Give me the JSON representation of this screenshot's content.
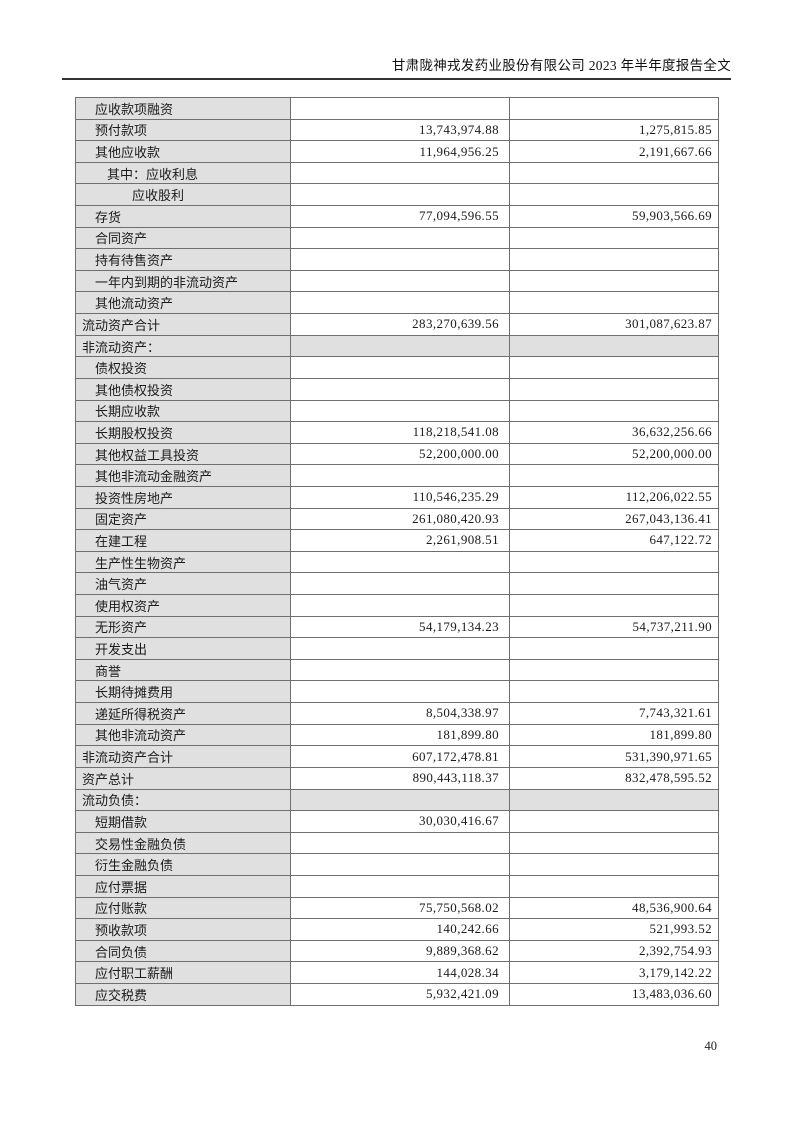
{
  "header": {
    "title": "甘肃陇神戎发药业股份有限公司 2023 年半年度报告全文"
  },
  "footer": {
    "page_number": "40"
  },
  "colors": {
    "label_cell_bg": "#e0e0e0",
    "section_row_bg": "#e0e0e0",
    "table_border": "#6f6f6f",
    "header_rule": "#333333",
    "text": "#1b1b1b"
  },
  "balance_sheet_table": {
    "rows": [
      {
        "label": "应收款项融资",
        "indent": 1,
        "current": "",
        "prior": "",
        "section": false
      },
      {
        "label": "预付款项",
        "indent": 1,
        "current": "13,743,974.88",
        "prior": "1,275,815.85",
        "section": false
      },
      {
        "label": "其他应收款",
        "indent": 1,
        "current": "11,964,956.25",
        "prior": "2,191,667.66",
        "section": false
      },
      {
        "label": "其中：应收利息",
        "indent": 2,
        "current": "",
        "prior": "",
        "section": false
      },
      {
        "label": "应收股利",
        "indent": 3,
        "current": "",
        "prior": "",
        "section": false
      },
      {
        "label": "存货",
        "indent": 1,
        "current": "77,094,596.55",
        "prior": "59,903,566.69",
        "section": false
      },
      {
        "label": "合同资产",
        "indent": 1,
        "current": "",
        "prior": "",
        "section": false
      },
      {
        "label": "持有待售资产",
        "indent": 1,
        "current": "",
        "prior": "",
        "section": false
      },
      {
        "label": "一年内到期的非流动资产",
        "indent": 1,
        "current": "",
        "prior": "",
        "section": false
      },
      {
        "label": "其他流动资产",
        "indent": 1,
        "current": "",
        "prior": "",
        "section": false
      },
      {
        "label": "流动资产合计",
        "indent": 0,
        "current": "283,270,639.56",
        "prior": "301,087,623.87",
        "section": false
      },
      {
        "label": "非流动资产：",
        "indent": 0,
        "current": "",
        "prior": "",
        "section": true
      },
      {
        "label": "债权投资",
        "indent": 1,
        "current": "",
        "prior": "",
        "section": false
      },
      {
        "label": "其他债权投资",
        "indent": 1,
        "current": "",
        "prior": "",
        "section": false
      },
      {
        "label": "长期应收款",
        "indent": 1,
        "current": "",
        "prior": "",
        "section": false
      },
      {
        "label": "长期股权投资",
        "indent": 1,
        "current": "118,218,541.08",
        "prior": "36,632,256.66",
        "section": false
      },
      {
        "label": "其他权益工具投资",
        "indent": 1,
        "current": "52,200,000.00",
        "prior": "52,200,000.00",
        "section": false
      },
      {
        "label": "其他非流动金融资产",
        "indent": 1,
        "current": "",
        "prior": "",
        "section": false
      },
      {
        "label": "投资性房地产",
        "indent": 1,
        "current": "110,546,235.29",
        "prior": "112,206,022.55",
        "section": false
      },
      {
        "label": "固定资产",
        "indent": 1,
        "current": "261,080,420.93",
        "prior": "267,043,136.41",
        "section": false
      },
      {
        "label": "在建工程",
        "indent": 1,
        "current": "2,261,908.51",
        "prior": "647,122.72",
        "section": false
      },
      {
        "label": "生产性生物资产",
        "indent": 1,
        "current": "",
        "prior": "",
        "section": false
      },
      {
        "label": "油气资产",
        "indent": 1,
        "current": "",
        "prior": "",
        "section": false
      },
      {
        "label": "使用权资产",
        "indent": 1,
        "current": "",
        "prior": "",
        "section": false
      },
      {
        "label": "无形资产",
        "indent": 1,
        "current": "54,179,134.23",
        "prior": "54,737,211.90",
        "section": false
      },
      {
        "label": "开发支出",
        "indent": 1,
        "current": "",
        "prior": "",
        "section": false
      },
      {
        "label": "商誉",
        "indent": 1,
        "current": "",
        "prior": "",
        "section": false
      },
      {
        "label": "长期待摊费用",
        "indent": 1,
        "current": "",
        "prior": "",
        "section": false
      },
      {
        "label": "递延所得税资产",
        "indent": 1,
        "current": "8,504,338.97",
        "prior": "7,743,321.61",
        "section": false
      },
      {
        "label": "其他非流动资产",
        "indent": 1,
        "current": "181,899.80",
        "prior": "181,899.80",
        "section": false
      },
      {
        "label": "非流动资产合计",
        "indent": 0,
        "current": "607,172,478.81",
        "prior": "531,390,971.65",
        "section": false
      },
      {
        "label": "资产总计",
        "indent": 0,
        "current": "890,443,118.37",
        "prior": "832,478,595.52",
        "section": false
      },
      {
        "label": "流动负债：",
        "indent": 0,
        "current": "",
        "prior": "",
        "section": true
      },
      {
        "label": "短期借款",
        "indent": 1,
        "current": "30,030,416.67",
        "prior": "",
        "section": false
      },
      {
        "label": "交易性金融负债",
        "indent": 1,
        "current": "",
        "prior": "",
        "section": false
      },
      {
        "label": "衍生金融负债",
        "indent": 1,
        "current": "",
        "prior": "",
        "section": false
      },
      {
        "label": "应付票据",
        "indent": 1,
        "current": "",
        "prior": "",
        "section": false
      },
      {
        "label": "应付账款",
        "indent": 1,
        "current": "75,750,568.02",
        "prior": "48,536,900.64",
        "section": false
      },
      {
        "label": "预收款项",
        "indent": 1,
        "current": "140,242.66",
        "prior": "521,993.52",
        "section": false
      },
      {
        "label": "合同负债",
        "indent": 1,
        "current": "9,889,368.62",
        "prior": "2,392,754.93",
        "section": false
      },
      {
        "label": "应付职工薪酬",
        "indent": 1,
        "current": "144,028.34",
        "prior": "3,179,142.22",
        "section": false
      },
      {
        "label": "应交税费",
        "indent": 1,
        "current": "5,932,421.09",
        "prior": "13,483,036.60",
        "section": false
      }
    ]
  }
}
